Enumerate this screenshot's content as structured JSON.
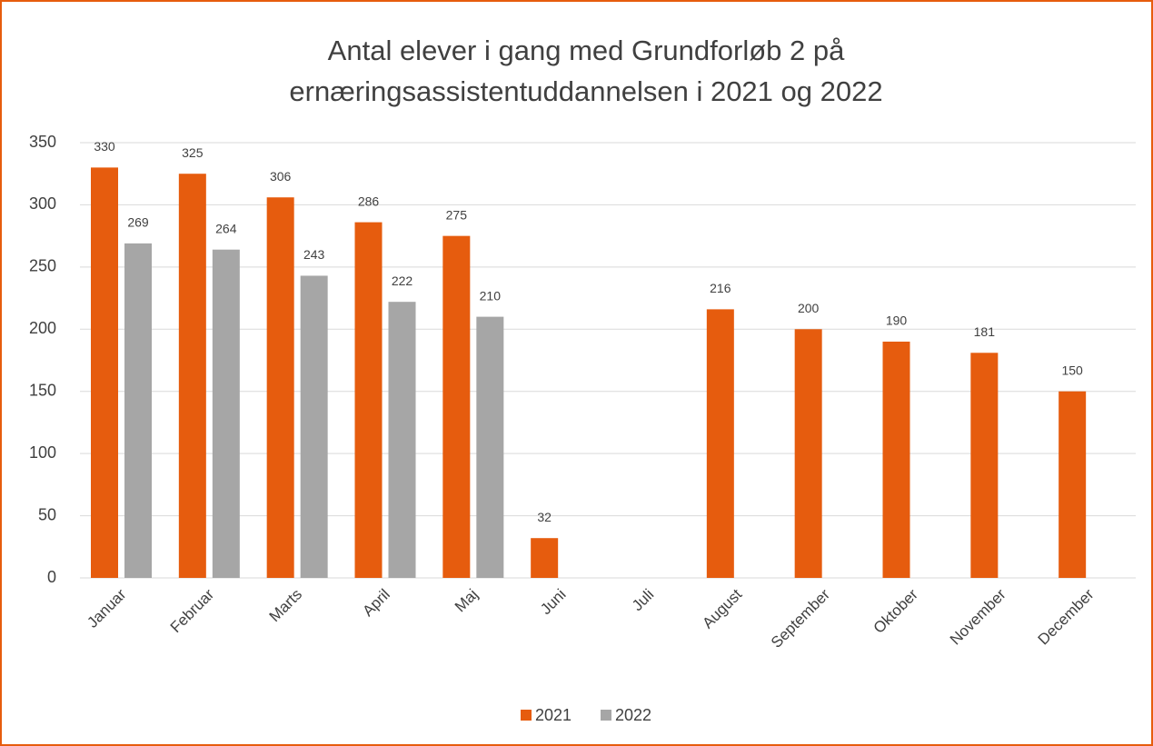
{
  "chart_data": {
    "type": "bar",
    "title": [
      "Antal elever i gang med Grundforløb 2 på",
      "ernæringsassistentuddannelsen i 2021 og 2022"
    ],
    "categories": [
      "Januar",
      "Februar",
      "Marts",
      "April",
      "Maj",
      "Juni",
      "Juli",
      "August",
      "September",
      "Oktober",
      "November",
      "December"
    ],
    "series": [
      {
        "name": "2021",
        "color": "#e65c0e",
        "values": [
          330,
          325,
          306,
          286,
          275,
          32,
          null,
          216,
          200,
          190,
          181,
          150
        ]
      },
      {
        "name": "2022",
        "color": "#a6a6a6",
        "values": [
          269,
          264,
          243,
          222,
          210,
          null,
          null,
          null,
          null,
          null,
          null,
          null
        ]
      }
    ],
    "ylim": [
      0,
      350
    ],
    "yticks": [
      0,
      50,
      100,
      150,
      200,
      250,
      300,
      350
    ],
    "grid": true,
    "legend": "bottom"
  }
}
